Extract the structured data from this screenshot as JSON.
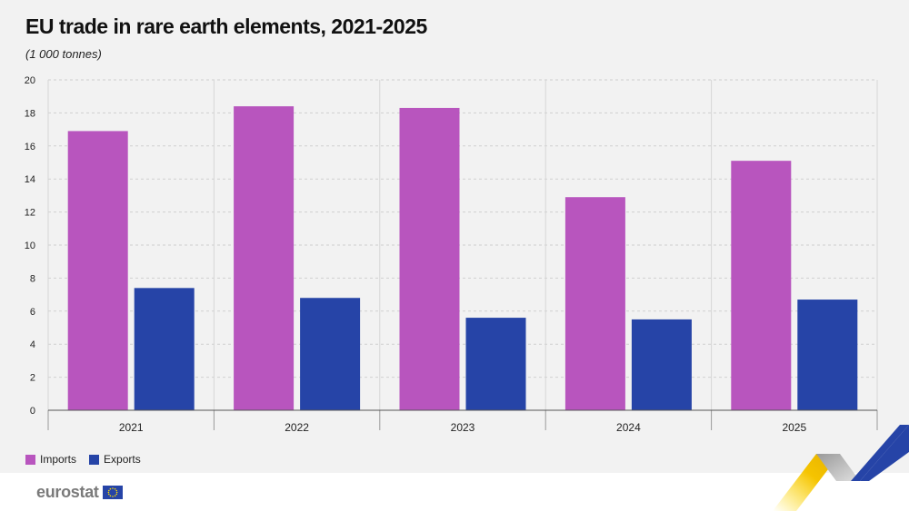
{
  "title": "EU trade in rare earth elements, 2021-2025",
  "subtitle": "(1 000 tonnes)",
  "brand": "eurostat",
  "colors": {
    "imports": "#b855be",
    "exports": "#2644a7",
    "background": "#f2f2f2"
  },
  "chart_data": {
    "type": "bar",
    "title": "EU trade in rare earth elements, 2021-2025",
    "subtitle": "(1 000 tonnes)",
    "categories": [
      "2021",
      "2022",
      "2023",
      "2024",
      "2025"
    ],
    "series": [
      {
        "name": "Imports",
        "values": [
          16.9,
          18.4,
          18.3,
          12.9,
          15.1
        ]
      },
      {
        "name": "Exports",
        "values": [
          7.4,
          6.8,
          5.6,
          5.5,
          6.7
        ]
      }
    ],
    "ylim": [
      0,
      20
    ],
    "yticks": [
      0,
      2,
      4,
      6,
      8,
      10,
      12,
      14,
      16,
      18,
      20
    ],
    "grid": true,
    "legend": "bottom-left"
  }
}
